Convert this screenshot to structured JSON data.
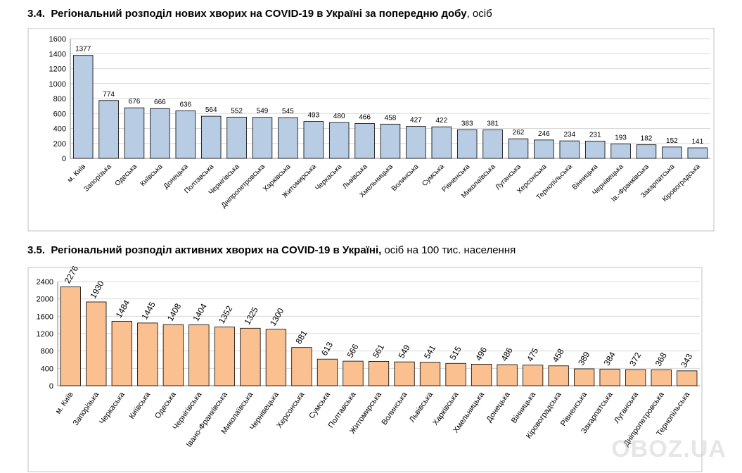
{
  "sections": [
    {
      "number": "3.4.",
      "title_bold": "Регіональний розподіл нових хворих на COVID-19 в Україні за попередню добу",
      "title_rest": ", осіб"
    },
    {
      "number": "3.5.",
      "title_bold": "Регіональний розподіл активних хворих на COVID-19 в Україні,",
      "title_rest": " осіб на 100 тис. населення"
    }
  ],
  "watermark": "OBOZ.UA",
  "chart_data": [
    {
      "type": "bar",
      "title": "Регіональний розподіл нових хворих на COVID-19 в Україні за попередню добу, осіб",
      "xlabel": "",
      "ylabel": "",
      "ylim": [
        0,
        1600
      ],
      "yticks": [
        0,
        200,
        400,
        600,
        800,
        1000,
        1200,
        1400,
        1600
      ],
      "bar_color": "#b8cce4",
      "bar_stroke": "#000000",
      "label_rotation": 0,
      "categories": [
        "м. Київ",
        "Запорізька",
        "Одеська",
        "Київська",
        "Донецька",
        "Полтавська",
        "Чернігівська",
        "Дніпропетровська",
        "Харківська",
        "Житомирська",
        "Черкаська",
        "Львівська",
        "Хмельницька",
        "Волинська",
        "Сумська",
        "Рівненська",
        "Миколаївська",
        "Луганська",
        "Херсонська",
        "Тернопільська",
        "Вінницька",
        "Чернівецька",
        "Ів.-Франківська",
        "Закарпатська",
        "Кіровоградська"
      ],
      "values": [
        1377,
        774,
        676,
        666,
        636,
        564,
        552,
        549,
        545,
        493,
        480,
        466,
        458,
        427,
        422,
        383,
        381,
        262,
        246,
        234,
        231,
        193,
        182,
        152,
        141
      ]
    },
    {
      "type": "bar",
      "title": "Регіональний розподіл активних хворих на COVID-19 в Україні, осіб на 100 тис. населення",
      "xlabel": "",
      "ylabel": "",
      "ylim": [
        0,
        2400
      ],
      "yticks": [
        0,
        400,
        800,
        1200,
        1600,
        2000,
        2400
      ],
      "bar_color": "#fac090",
      "bar_stroke": "#000000",
      "label_rotation": -60,
      "categories": [
        "м. Київ",
        "Запорізька",
        "Черкаська",
        "Київська",
        "Одеська",
        "Чернігівська",
        "Івано-Франківська",
        "Миколаївська",
        "Чернівецька",
        "Херсонська",
        "Сумська",
        "Полтавська",
        "Житомирська",
        "Волинська",
        "Львівська",
        "Харківська",
        "Хмельницька",
        "Донецька",
        "Вінницька",
        "Кіровоградська",
        "Рівненська",
        "Закарпатська",
        "Луганська",
        "Дніпропетровська",
        "Тернопільська"
      ],
      "values": [
        2276,
        1930,
        1484,
        1445,
        1408,
        1404,
        1352,
        1325,
        1300,
        881,
        613,
        566,
        561,
        549,
        541,
        515,
        496,
        486,
        475,
        458,
        389,
        384,
        372,
        368,
        343
      ]
    }
  ]
}
